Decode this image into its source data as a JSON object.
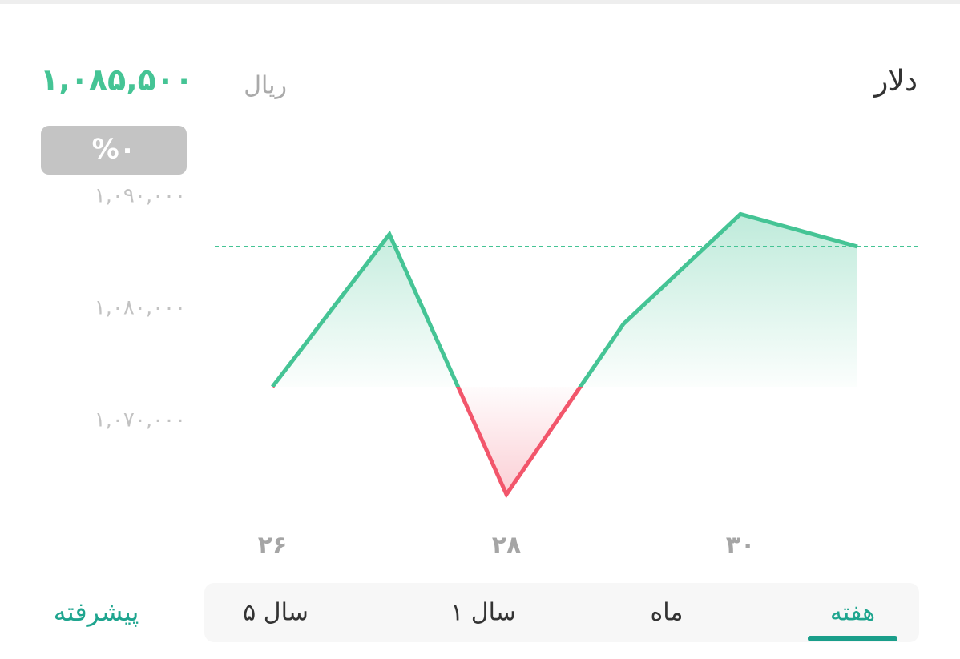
{
  "header": {
    "title": "دلار",
    "price": "۱,۰۸۵,۵۰۰",
    "unit": "ریال",
    "change": "%۰"
  },
  "chart_data": {
    "type": "line",
    "categories": [
      "۲۶",
      null,
      "۲۸",
      null,
      "۳۰",
      null
    ],
    "values": [
      1073000,
      1086600,
      1063400,
      1078600,
      1088400,
      1085500
    ],
    "reference_line": 1085500,
    "color": "#45c495",
    "down_color": "#f2566b",
    "ylim": [
      1061000,
      1091000
    ],
    "yticks": [
      {
        "value": 1070000,
        "label": "۱,۰۷۰,۰۰۰"
      },
      {
        "value": 1080000,
        "label": "۱,۰۸۰,۰۰۰"
      },
      {
        "value": 1090000,
        "label": "۱,۰۹۰,۰۰۰"
      }
    ]
  },
  "tabs": [
    "هفته",
    "ماه",
    "۱ سال",
    "۵ سال"
  ],
  "advanced": "پیشرفته"
}
